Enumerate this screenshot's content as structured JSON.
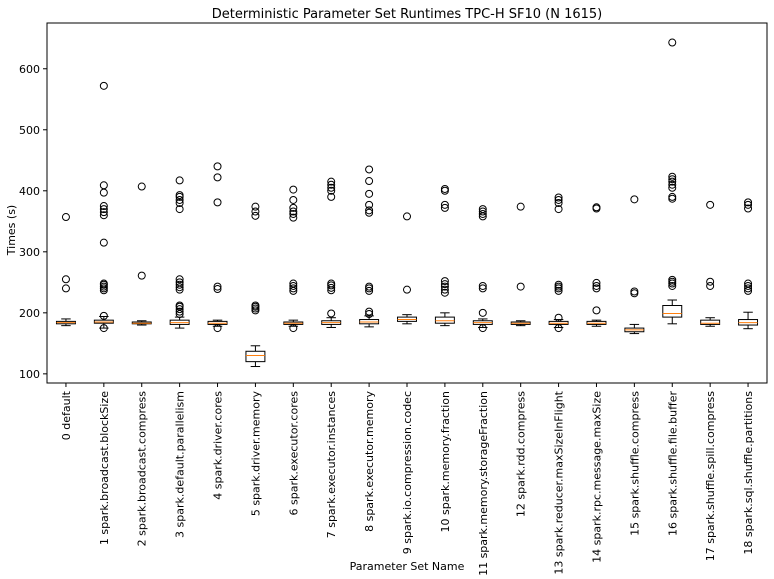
{
  "chart_data": {
    "type": "box",
    "title": "Deterministic Parameter Set Runtimes TPC-H SF10 (N 1615)",
    "xlabel": "Parameter Set Name",
    "ylabel": "Times (s)",
    "ylim": [
      85,
      675
    ],
    "yticks": [
      100,
      200,
      300,
      400,
      500,
      600
    ],
    "grid": false,
    "colors": {
      "box": "#000000",
      "median": "#ff7f0e",
      "background": "#ffffff"
    },
    "categories": [
      "0 default",
      "1 spark.broadcast.blockSize",
      "2 spark.broadcast.compress",
      "3 spark.default.parallelism",
      "4 spark.driver.cores",
      "5 spark.driver.memory",
      "6 spark.executor.cores",
      "7 spark.executor.instances",
      "8 spark.executor.memory",
      "9 spark.io.compression.codec",
      "10 spark.memory.fraction",
      "11 spark.memory.storageFraction",
      "12 spark.rdd.compress",
      "13 spark.reducer.maxSizeInFlight",
      "14 spark.rpc.message.maxSize",
      "15 spark.shuffle.compress",
      "16 spark.shuffle.file.buffer",
      "17 spark.shuffle.spill.compress",
      "18 spark.sql.shuffle.partitions"
    ],
    "boxes": [
      {
        "whislo": 179,
        "q1": 182,
        "med": 184,
        "q3": 186,
        "whishi": 190,
        "fliers": [
          240,
          255,
          357
        ]
      },
      {
        "whislo": 175,
        "q1": 183,
        "med": 185,
        "q3": 188,
        "whishi": 194,
        "fliers": [
          175,
          195,
          237,
          240,
          243,
          246,
          248,
          315,
          360,
          365,
          370,
          375,
          397,
          409,
          572
        ]
      },
      {
        "whislo": 180,
        "q1": 182,
        "med": 183,
        "q3": 185,
        "whishi": 187,
        "fliers": [
          261,
          407
        ]
      },
      {
        "whislo": 175,
        "q1": 181,
        "med": 184,
        "q3": 188,
        "whishi": 193,
        "fliers": [
          198,
          202,
          206,
          210,
          212,
          238,
          242,
          246,
          250,
          255,
          370,
          380,
          385,
          390,
          393,
          417
        ]
      },
      {
        "whislo": 178,
        "q1": 181,
        "med": 183,
        "q3": 186,
        "whishi": 188,
        "fliers": [
          175,
          239,
          243,
          381,
          422,
          440
        ]
      },
      {
        "whislo": 112,
        "q1": 120,
        "med": 130,
        "q3": 137,
        "whishi": 146,
        "fliers": [
          204,
          207,
          210,
          212,
          359,
          366,
          374
        ]
      },
      {
        "whislo": 178,
        "q1": 181,
        "med": 183,
        "q3": 185,
        "whishi": 188,
        "fliers": [
          175,
          236,
          240,
          244,
          248,
          356,
          362,
          366,
          372,
          385,
          402
        ]
      },
      {
        "whislo": 176,
        "q1": 181,
        "med": 184,
        "q3": 187,
        "whishi": 192,
        "fliers": [
          199,
          237,
          241,
          245,
          248,
          390,
          400,
          405,
          410,
          415
        ]
      },
      {
        "whislo": 177,
        "q1": 182,
        "med": 185,
        "q3": 189,
        "whishi": 195,
        "fliers": [
          198,
          202,
          236,
          240,
          243,
          364,
          368,
          377,
          395,
          416,
          435
        ]
      },
      {
        "whislo": 182,
        "q1": 186,
        "med": 189,
        "q3": 193,
        "whishi": 197,
        "fliers": [
          238,
          358
        ]
      },
      {
        "whislo": 179,
        "q1": 183,
        "med": 187,
        "q3": 193,
        "whishi": 200,
        "fliers": [
          233,
          238,
          243,
          247,
          252,
          372,
          377,
          400,
          403
        ]
      },
      {
        "whislo": 176,
        "q1": 181,
        "med": 184,
        "q3": 187,
        "whishi": 190,
        "fliers": [
          175,
          200,
          240,
          244,
          358,
          362,
          366,
          370
        ]
      },
      {
        "whislo": 179,
        "q1": 181,
        "med": 183,
        "q3": 185,
        "whishi": 187,
        "fliers": [
          243,
          374
        ]
      },
      {
        "whislo": 176,
        "q1": 181,
        "med": 183,
        "q3": 186,
        "whishi": 189,
        "fliers": [
          175,
          192,
          236,
          240,
          243,
          246,
          370,
          380,
          385,
          389
        ]
      },
      {
        "whislo": 178,
        "q1": 181,
        "med": 183,
        "q3": 186,
        "whishi": 188,
        "fliers": [
          204,
          240,
          244,
          249,
          371,
          373
        ]
      },
      {
        "whislo": 166,
        "q1": 169,
        "med": 172,
        "q3": 175,
        "whishi": 181,
        "fliers": [
          232,
          235,
          386
        ]
      },
      {
        "whislo": 182,
        "q1": 193,
        "med": 199,
        "q3": 212,
        "whishi": 221,
        "fliers": [
          244,
          248,
          251,
          254,
          387,
          390,
          405,
          410,
          415,
          419,
          423,
          643
        ]
      },
      {
        "whislo": 178,
        "q1": 181,
        "med": 183,
        "q3": 188,
        "whishi": 192,
        "fliers": [
          244,
          251,
          377
        ]
      },
      {
        "whislo": 174,
        "q1": 180,
        "med": 184,
        "q3": 189,
        "whishi": 201,
        "fliers": [
          236,
          240,
          244,
          248,
          371,
          377,
          381
        ]
      }
    ]
  }
}
